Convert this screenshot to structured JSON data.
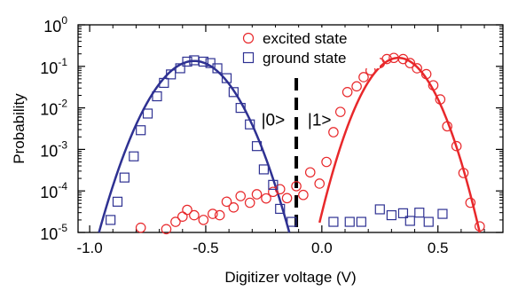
{
  "chart_data": {
    "type": "scatter",
    "xlabel": "Digitizer voltage (V)",
    "ylabel": "Probability",
    "xlim": [
      -1.05,
      0.78
    ],
    "ylim_log10": [
      -5,
      0
    ],
    "y_scale": "log",
    "x_ticks": [
      {
        "value": -1.0,
        "label": "-1.0"
      },
      {
        "value": -0.5,
        "label": "-0.5"
      },
      {
        "value": 0.0,
        "label": "0.0"
      },
      {
        "value": 0.5,
        "label": "0.5"
      }
    ],
    "y_ticks": [
      {
        "exp": 0,
        "base": "10",
        "sup": "0"
      },
      {
        "exp": -1,
        "base": "10",
        "sup": "-1"
      },
      {
        "exp": -2,
        "base": "10",
        "sup": "-2"
      },
      {
        "exp": -3,
        "base": "10",
        "sup": "-3"
      },
      {
        "exp": -4,
        "base": "10",
        "sup": "-4"
      },
      {
        "exp": -5,
        "base": "10",
        "sup": "-5"
      }
    ],
    "legend_position": "top-right",
    "threshold_x": -0.11,
    "annotations": [
      {
        "text": "|0>",
        "x": -0.21,
        "y": 0.005
      },
      {
        "text": "|1>",
        "x": -0.01,
        "y": 0.005
      }
    ],
    "series": [
      {
        "name": "excited state",
        "marker": "circle",
        "color": "#e8282b",
        "points": [
          [
            -0.78,
            1.3e-05
          ],
          [
            -0.67,
            1.2e-05
          ],
          [
            -0.63,
            1.8e-05
          ],
          [
            -0.6,
            2.4e-05
          ],
          [
            -0.58,
            3.5e-05
          ],
          [
            -0.55,
            2.6e-05
          ],
          [
            -0.51,
            2e-05
          ],
          [
            -0.47,
            2.8e-05
          ],
          [
            -0.44,
            2.6e-05
          ],
          [
            -0.41,
            5.5e-05
          ],
          [
            -0.38,
            4e-05
          ],
          [
            -0.35,
            7.5e-05
          ],
          [
            -0.31,
            5.2e-05
          ],
          [
            -0.28,
            8.3e-05
          ],
          [
            -0.24,
            6.6e-05
          ],
          [
            -0.21,
            9.5e-05
          ],
          [
            -0.18,
            0.00011
          ],
          [
            -0.15,
            6.7e-05
          ],
          [
            -0.11,
            0.00013
          ],
          [
            -0.08,
            8e-05
          ],
          [
            -0.05,
            0.00028
          ],
          [
            -0.01,
            0.00015
          ],
          [
            0.02,
            0.0005
          ],
          [
            0.05,
            0.0026
          ],
          [
            0.08,
            0.008
          ],
          [
            0.11,
            0.024
          ],
          [
            0.15,
            0.033
          ],
          [
            0.18,
            0.055
          ],
          [
            0.21,
            0.08
          ],
          [
            0.25,
            0.12
          ],
          [
            0.28,
            0.15
          ],
          [
            0.31,
            0.16
          ],
          [
            0.35,
            0.15
          ],
          [
            0.38,
            0.12
          ],
          [
            0.41,
            0.09
          ],
          [
            0.45,
            0.065
          ],
          [
            0.48,
            0.035
          ],
          [
            0.51,
            0.016
          ],
          [
            0.54,
            0.0036
          ],
          [
            0.58,
            0.0012
          ],
          [
            0.61,
            0.00027
          ],
          [
            0.64,
            5.2e-05
          ],
          [
            0.68,
            1.4e-05
          ]
        ],
        "fit": {
          "mu": 0.33,
          "peak": 0.16,
          "range": [
            -0.01,
            0.68
          ]
        }
      },
      {
        "name": "ground state",
        "marker": "square",
        "color": "#2e3192",
        "points": [
          [
            -0.91,
            2e-05
          ],
          [
            -0.88,
            5.5e-05
          ],
          [
            -0.85,
            0.00021
          ],
          [
            -0.81,
            0.00068
          ],
          [
            -0.78,
            0.0029
          ],
          [
            -0.75,
            0.0073
          ],
          [
            -0.71,
            0.019
          ],
          [
            -0.68,
            0.04
          ],
          [
            -0.65,
            0.064
          ],
          [
            -0.61,
            0.09
          ],
          [
            -0.58,
            0.13
          ],
          [
            -0.55,
            0.14
          ],
          [
            -0.51,
            0.13
          ],
          [
            -0.48,
            0.12
          ],
          [
            -0.45,
            0.09
          ],
          [
            -0.41,
            0.052
          ],
          [
            -0.38,
            0.024
          ],
          [
            -0.35,
            0.01
          ],
          [
            -0.31,
            0.004
          ],
          [
            -0.28,
            0.0012
          ],
          [
            -0.25,
            0.00033
          ],
          [
            -0.21,
            0.00014
          ],
          [
            -0.18,
            3.7e-05
          ],
          [
            -0.13,
            1.8e-05
          ],
          [
            0.05,
            1.8e-05
          ],
          [
            0.12,
            1.8e-05
          ],
          [
            0.17,
            1.8e-05
          ],
          [
            0.25,
            3.6e-05
          ],
          [
            0.3,
            2.6e-05
          ],
          [
            0.35,
            2.9e-05
          ],
          [
            0.38,
            1.9e-05
          ],
          [
            0.42,
            3e-05
          ],
          [
            0.46,
            1.8e-05
          ],
          [
            0.52,
            2.8e-05
          ]
        ],
        "fit": {
          "mu": -0.55,
          "peak": 0.135,
          "range": [
            -0.96,
            -0.14
          ]
        }
      }
    ]
  }
}
